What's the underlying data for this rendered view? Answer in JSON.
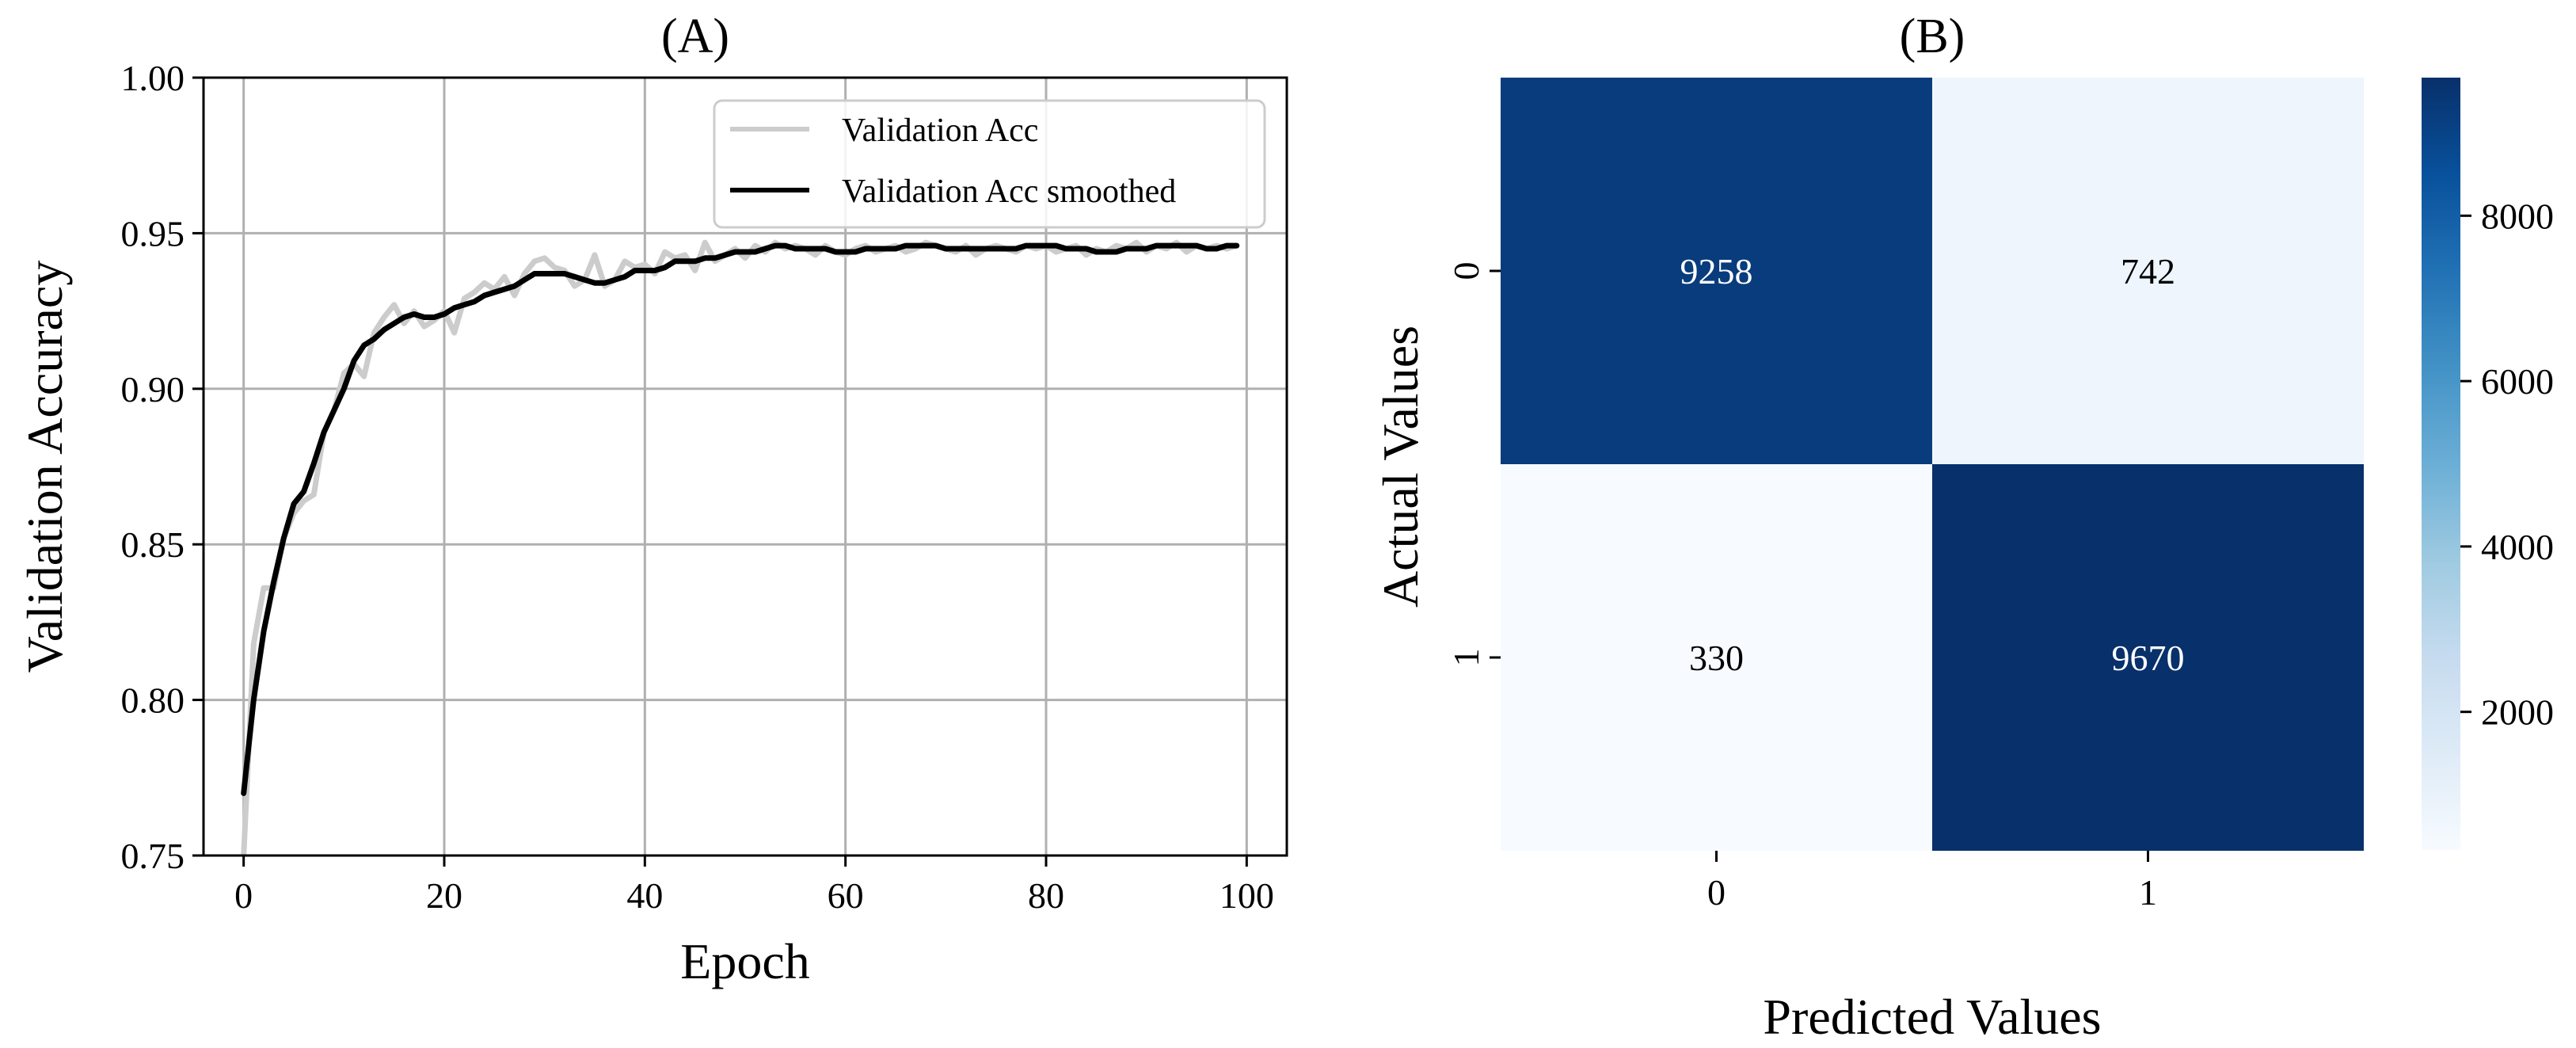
{
  "chart_data": [
    {
      "type": "line",
      "title": "(A)",
      "xlabel": "Epoch",
      "ylabel": "Validation Accuracy",
      "xlim": [
        -4,
        104
      ],
      "ylim": [
        0.75,
        1.0
      ],
      "xticks": [
        0,
        20,
        40,
        60,
        80,
        100
      ],
      "yticks": [
        0.75,
        0.8,
        0.85,
        0.9,
        0.95,
        1.0
      ],
      "xtick_labels": [
        "0",
        "20",
        "40",
        "60",
        "80",
        "100"
      ],
      "ytick_labels": [
        "0.75",
        "0.80",
        "0.85",
        "0.90",
        "0.95",
        "1.00"
      ],
      "grid": true,
      "legend_position": "top-right",
      "series": [
        {
          "name": "Validation Acc",
          "color": "#cccccc",
          "x": [
            0,
            1,
            2,
            3,
            4,
            5,
            6,
            7,
            8,
            9,
            10,
            11,
            12,
            13,
            14,
            15,
            16,
            17,
            18,
            19,
            20,
            21,
            22,
            23,
            24,
            25,
            26,
            27,
            28,
            29,
            30,
            31,
            32,
            33,
            34,
            35,
            36,
            37,
            38,
            39,
            40,
            41,
            42,
            43,
            44,
            45,
            46,
            47,
            48,
            49,
            50,
            51,
            52,
            53,
            54,
            55,
            56,
            57,
            58,
            59,
            60,
            61,
            62,
            63,
            64,
            65,
            66,
            67,
            68,
            69,
            70,
            71,
            72,
            73,
            74,
            75,
            76,
            77,
            78,
            79,
            80,
            81,
            82,
            83,
            84,
            85,
            86,
            87,
            88,
            89,
            90,
            91,
            92,
            93,
            94,
            95,
            96,
            97,
            98,
            99
          ],
          "values": [
            0.75,
            0.818,
            0.836,
            0.836,
            0.852,
            0.86,
            0.864,
            0.866,
            0.886,
            0.893,
            0.905,
            0.908,
            0.904,
            0.918,
            0.923,
            0.927,
            0.921,
            0.925,
            0.92,
            0.922,
            0.925,
            0.918,
            0.929,
            0.931,
            0.934,
            0.932,
            0.936,
            0.93,
            0.937,
            0.941,
            0.942,
            0.939,
            0.938,
            0.933,
            0.935,
            0.943,
            0.933,
            0.935,
            0.941,
            0.939,
            0.94,
            0.937,
            0.944,
            0.942,
            0.943,
            0.938,
            0.947,
            0.941,
            0.943,
            0.945,
            0.942,
            0.946,
            0.944,
            0.947,
            0.945,
            0.946,
            0.945,
            0.943,
            0.946,
            0.944,
            0.943,
            0.945,
            0.946,
            0.944,
            0.945,
            0.946,
            0.944,
            0.945,
            0.947,
            0.946,
            0.945,
            0.944,
            0.946,
            0.943,
            0.945,
            0.946,
            0.945,
            0.944,
            0.946,
            0.945,
            0.946,
            0.944,
            0.945,
            0.946,
            0.943,
            0.945,
            0.944,
            0.946,
            0.945,
            0.947,
            0.944,
            0.946,
            0.945,
            0.947,
            0.944,
            0.946,
            0.945,
            0.946,
            0.945,
            0.946
          ]
        },
        {
          "name": "Validation Acc smoothed",
          "color": "#000000",
          "x": [
            0,
            1,
            2,
            3,
            4,
            5,
            6,
            7,
            8,
            9,
            10,
            11,
            12,
            13,
            14,
            15,
            16,
            17,
            18,
            19,
            20,
            21,
            22,
            23,
            24,
            25,
            26,
            27,
            28,
            29,
            30,
            31,
            32,
            33,
            34,
            35,
            36,
            37,
            38,
            39,
            40,
            41,
            42,
            43,
            44,
            45,
            46,
            47,
            48,
            49,
            50,
            51,
            52,
            53,
            54,
            55,
            56,
            57,
            58,
            59,
            60,
            61,
            62,
            63,
            64,
            65,
            66,
            67,
            68,
            69,
            70,
            71,
            72,
            73,
            74,
            75,
            76,
            77,
            78,
            79,
            80,
            81,
            82,
            83,
            84,
            85,
            86,
            87,
            88,
            89,
            90,
            91,
            92,
            93,
            94,
            95,
            96,
            97,
            98,
            99
          ],
          "values": [
            0.77,
            0.8,
            0.822,
            0.838,
            0.852,
            0.863,
            0.867,
            0.876,
            0.886,
            0.893,
            0.9,
            0.909,
            0.914,
            0.916,
            0.919,
            0.921,
            0.923,
            0.924,
            0.923,
            0.923,
            0.924,
            0.926,
            0.927,
            0.928,
            0.93,
            0.931,
            0.932,
            0.933,
            0.935,
            0.937,
            0.937,
            0.937,
            0.937,
            0.936,
            0.935,
            0.934,
            0.934,
            0.935,
            0.936,
            0.938,
            0.938,
            0.938,
            0.939,
            0.941,
            0.941,
            0.941,
            0.942,
            0.942,
            0.943,
            0.944,
            0.944,
            0.944,
            0.945,
            0.946,
            0.946,
            0.945,
            0.945,
            0.945,
            0.945,
            0.944,
            0.944,
            0.944,
            0.945,
            0.945,
            0.945,
            0.945,
            0.946,
            0.946,
            0.946,
            0.946,
            0.945,
            0.945,
            0.945,
            0.945,
            0.945,
            0.945,
            0.945,
            0.945,
            0.946,
            0.946,
            0.946,
            0.946,
            0.945,
            0.945,
            0.945,
            0.944,
            0.944,
            0.944,
            0.945,
            0.945,
            0.945,
            0.946,
            0.946,
            0.946,
            0.946,
            0.946,
            0.945,
            0.945,
            0.946,
            0.946
          ]
        }
      ]
    },
    {
      "type": "heatmap",
      "title": "(B)",
      "xlabel": "Predicted Values",
      "ylabel": "Actual Values",
      "x_categories": [
        "0",
        "1"
      ],
      "y_categories": [
        "0",
        "1"
      ],
      "values": [
        [
          9258,
          742
        ],
        [
          330,
          9670
        ]
      ],
      "colormap": "Blues",
      "colorbar": {
        "min": 330,
        "max": 9670,
        "ticks": [
          2000,
          4000,
          6000,
          8000
        ],
        "tick_labels": [
          "2000",
          "4000",
          "6000",
          "8000"
        ],
        "low_color": "#f7fbff",
        "high_color": "#08306b"
      }
    }
  ]
}
